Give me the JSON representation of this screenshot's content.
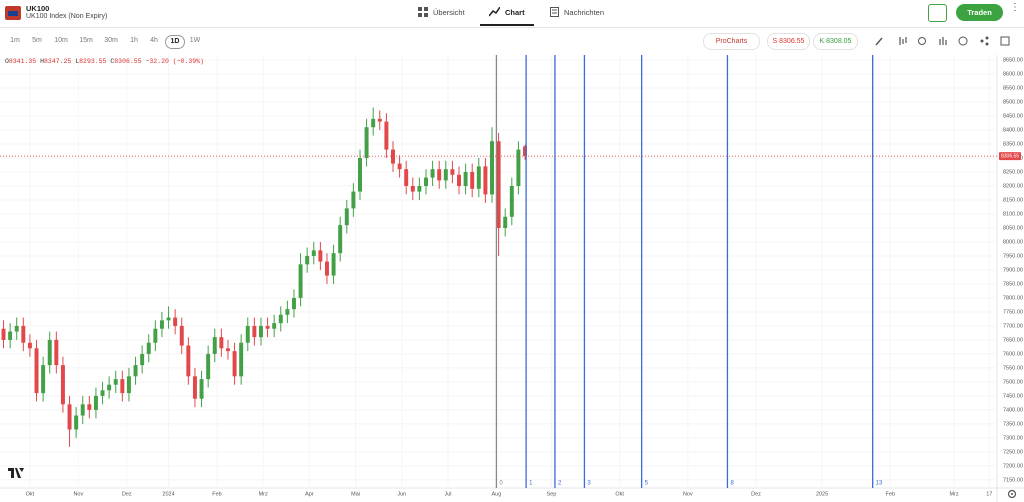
{
  "header": {
    "symbol": "UK100",
    "name": "UK100 Index (Non Expiry)",
    "tabs": [
      "Übersicht",
      "Chart",
      "Nachrichten"
    ],
    "trade": "Traden"
  },
  "toolbar": {
    "timeframes": [
      "1m",
      "5m",
      "10m",
      "15m",
      "30m",
      "1h",
      "4h",
      "1D",
      "1W"
    ],
    "active": 7,
    "procharts": "ProCharts",
    "sell": "S 8306.55",
    "buy": "K 8308.05"
  },
  "chart_data": {
    "type": "candlestick",
    "ohlc_labels": [
      "O",
      "H",
      "L",
      "C"
    ],
    "change": "−32.20 (−0.39%)",
    "up_color": "#43a047",
    "down_color": "#e2484a",
    "x": [
      -12,
      -9,
      -6,
      -3,
      0,
      3,
      6,
      9,
      12,
      15,
      18,
      21,
      24,
      27,
      30,
      33,
      36,
      39,
      42,
      45,
      48,
      51,
      54,
      57,
      60,
      63,
      66,
      69,
      72,
      75,
      78,
      81,
      84,
      87,
      90,
      93,
      96,
      99,
      102,
      105,
      108,
      111,
      114,
      117,
      120,
      123,
      126,
      129,
      132,
      135,
      138,
      141,
      144,
      147,
      150,
      153,
      156,
      159,
      162,
      165,
      168,
      171,
      174,
      177,
      180,
      183,
      186,
      189,
      192,
      195,
      198,
      201,
      204,
      207,
      210,
      213,
      216,
      219,
      222,
      225
    ],
    "open": [
      7690,
      7650,
      7680,
      7700,
      7640,
      7620,
      7460,
      7560,
      7650,
      7560,
      7420,
      7330,
      7380,
      7420,
      7400,
      7450,
      7470,
      7490,
      7510,
      7460,
      7520,
      7560,
      7600,
      7640,
      7690,
      7720,
      7730,
      7700,
      7630,
      7520,
      7440,
      7510,
      7600,
      7660,
      7620,
      7610,
      7520,
      7640,
      7700,
      7660,
      7700,
      7690,
      7710,
      7740,
      7760,
      7800,
      7920,
      7950,
      7970,
      7930,
      7880,
      7960,
      8060,
      8120,
      8180,
      8300,
      8410,
      8440,
      8430,
      8330,
      8280,
      8260,
      8200,
      8180,
      8200,
      8230,
      8260,
      8220,
      8260,
      8240,
      8200,
      8250,
      8190,
      8270,
      8170,
      8360,
      8050,
      8090,
      8200,
      8341.35
    ],
    "high": [
      7720,
      7710,
      7730,
      7730,
      7670,
      7650,
      7590,
      7680,
      7680,
      7590,
      7450,
      7410,
      7450,
      7450,
      7480,
      7500,
      7520,
      7540,
      7540,
      7550,
      7590,
      7630,
      7670,
      7720,
      7750,
      7770,
      7760,
      7730,
      7660,
      7550,
      7540,
      7630,
      7690,
      7690,
      7650,
      7640,
      7670,
      7730,
      7730,
      7730,
      7730,
      7740,
      7770,
      7790,
      7830,
      7960,
      7980,
      8000,
      8000,
      7960,
      7990,
      8090,
      8150,
      8210,
      8330,
      8440,
      8480,
      8470,
      8460,
      8360,
      8310,
      8290,
      8230,
      8230,
      8260,
      8290,
      8290,
      8290,
      8290,
      8270,
      8280,
      8280,
      8300,
      8300,
      8410,
      8390,
      8120,
      8230,
      8360,
      8347.25
    ],
    "low": [
      7620,
      7620,
      7650,
      7610,
      7590,
      7430,
      7430,
      7530,
      7530,
      7390,
      7268,
      7300,
      7350,
      7370,
      7370,
      7420,
      7440,
      7460,
      7430,
      7430,
      7490,
      7530,
      7570,
      7610,
      7660,
      7690,
      7670,
      7600,
      7490,
      7410,
      7410,
      7480,
      7570,
      7590,
      7580,
      7490,
      7490,
      7610,
      7630,
      7630,
      7660,
      7660,
      7680,
      7710,
      7730,
      7770,
      7890,
      7920,
      7900,
      7850,
      7850,
      7930,
      8030,
      8090,
      8150,
      8270,
      8380,
      8400,
      8300,
      8250,
      8230,
      8170,
      8150,
      8150,
      8170,
      8200,
      8190,
      8190,
      8210,
      8170,
      8170,
      8160,
      8160,
      8140,
      8140,
      7950,
      8020,
      8060,
      8170,
      8293.55
    ],
    "close": [
      7650,
      7680,
      7700,
      7640,
      7620,
      7460,
      7560,
      7650,
      7560,
      7420,
      7330,
      7380,
      7420,
      7400,
      7450,
      7470,
      7490,
      7510,
      7460,
      7520,
      7560,
      7600,
      7640,
      7690,
      7720,
      7730,
      7700,
      7630,
      7520,
      7440,
      7510,
      7600,
      7660,
      7620,
      7610,
      7520,
      7640,
      7700,
      7660,
      7700,
      7690,
      7710,
      7740,
      7760,
      7800,
      7920,
      7950,
      7970,
      7930,
      7880,
      7960,
      8060,
      8120,
      8180,
      8300,
      8410,
      8440,
      8430,
      8330,
      8280,
      8260,
      8200,
      8180,
      8200,
      8230,
      8260,
      8220,
      8260,
      8240,
      8200,
      8250,
      8190,
      8270,
      8170,
      8360,
      8050,
      8090,
      8200,
      8330,
      8306.55
    ],
    "xlim": [
      -13.6,
      439.5
    ],
    "xticks": [
      {
        "value": 0,
        "label": "Okt"
      },
      {
        "value": 22,
        "label": "Nov"
      },
      {
        "value": 44,
        "label": "Dez"
      },
      {
        "value": 63,
        "label": "2024"
      },
      {
        "value": 85,
        "label": "Feb"
      },
      {
        "value": 106,
        "label": "Mrz"
      },
      {
        "value": 127,
        "label": "Apr"
      },
      {
        "value": 148,
        "label": "Mai"
      },
      {
        "value": 169,
        "label": "Jun"
      },
      {
        "value": 190,
        "label": "Jul"
      },
      {
        "value": 212,
        "label": "Aug"
      },
      {
        "value": 237,
        "label": "Sep"
      },
      {
        "value": 268,
        "label": "Okt"
      },
      {
        "value": 299,
        "label": "Nov"
      },
      {
        "value": 330,
        "label": "Dez"
      },
      {
        "value": 360,
        "label": "2025"
      },
      {
        "value": 391,
        "label": "Feb"
      },
      {
        "value": 420,
        "label": "Mrz"
      },
      {
        "value": 436,
        "label": "17"
      }
    ],
    "ylim": [
      7121,
      8668
    ],
    "yticks": [
      {
        "value": 7150,
        "label": "7150.00"
      },
      {
        "value": 7200,
        "label": "7200.00"
      },
      {
        "value": 7250,
        "label": "7250.00"
      },
      {
        "value": 7300,
        "label": "7300.00"
      },
      {
        "value": 7350,
        "label": "7350.00"
      },
      {
        "value": 7400,
        "label": "7400.00"
      },
      {
        "value": 7450,
        "label": "7450.00"
      },
      {
        "value": 7500,
        "label": "7500.00"
      },
      {
        "value": 7550,
        "label": "7550.00"
      },
      {
        "value": 7600,
        "label": "7600.00"
      },
      {
        "value": 7650,
        "label": "7650.00"
      },
      {
        "value": 7700,
        "label": "7700.00"
      },
      {
        "value": 7750,
        "label": "7750.00"
      },
      {
        "value": 7800,
        "label": "7800.00"
      },
      {
        "value": 7850,
        "label": "7850.00"
      },
      {
        "value": 7900,
        "label": "7900.00"
      },
      {
        "value": 7950,
        "label": "7950.00"
      },
      {
        "value": 8000,
        "label": "8000.00"
      },
      {
        "value": 8050,
        "label": "8050.00"
      },
      {
        "value": 8100,
        "label": "8100.00"
      },
      {
        "value": 8150,
        "label": "8150.00"
      },
      {
        "value": 8200,
        "label": "8200.00"
      },
      {
        "value": 8250,
        "label": "8250.00"
      },
      {
        "value": 8300,
        "label": "8300.00"
      },
      {
        "value": 8350,
        "label": "8350.00"
      },
      {
        "value": 8400,
        "label": "8400.00"
      },
      {
        "value": 8450,
        "label": "8450.00"
      },
      {
        "value": 8500,
        "label": "8500.00"
      },
      {
        "value": 8550,
        "label": "8550.00"
      },
      {
        "value": 8600,
        "label": "8600.00"
      },
      {
        "value": 8650,
        "label": "8650.00"
      }
    ],
    "grid": true,
    "time_zones": {
      "x": [
        212,
        225.5,
        238.6,
        252,
        278,
        317,
        383
      ],
      "labels": [
        0,
        1,
        2,
        3,
        5,
        8,
        13
      ],
      "color": "#3d6bd6",
      "base_color": "#888888"
    }
  }
}
